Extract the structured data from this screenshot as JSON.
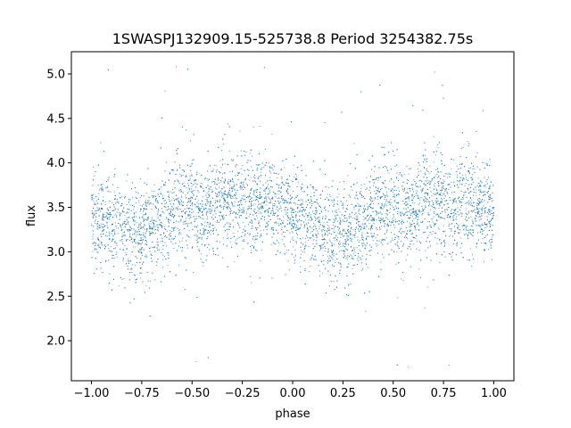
{
  "chart_data": {
    "type": "scatter",
    "title": "1SWASPJ132909.15-525738.8 Period 3254382.75s",
    "xlabel": "phase",
    "ylabel": "flux",
    "xlim": [
      -1.1,
      1.1
    ],
    "ylim": [
      1.55,
      5.25
    ],
    "xticks": [
      -1.0,
      -0.75,
      -0.5,
      -0.25,
      0.0,
      0.25,
      0.5,
      0.75,
      1.0
    ],
    "xtick_labels": [
      "−1.00",
      "−0.75",
      "−0.50",
      "−0.25",
      "0.00",
      "0.25",
      "0.50",
      "0.75",
      "1.00"
    ],
    "yticks": [
      2.0,
      2.5,
      3.0,
      3.5,
      4.0,
      4.5,
      5.0
    ],
    "ytick_labels": [
      "2.0",
      "2.5",
      "3.0",
      "3.5",
      "4.0",
      "4.5",
      "5.0"
    ],
    "grid": false,
    "marker_color": "#1f77b4",
    "series": [
      {
        "x_range": [
          -1.0,
          1.0
        ],
        "y_typical_range": [
          2.8,
          4.0
        ],
        "y_center_by_phase": [
          [
            -1.0,
            3.45
          ],
          [
            -0.9,
            3.3
          ],
          [
            -0.8,
            3.2
          ],
          [
            -0.7,
            3.25
          ],
          [
            -0.6,
            3.45
          ],
          [
            -0.5,
            3.55
          ],
          [
            -0.45,
            3.35
          ],
          [
            -0.35,
            3.6
          ],
          [
            -0.25,
            3.55
          ],
          [
            -0.1,
            3.5
          ],
          [
            0.0,
            3.45
          ],
          [
            0.1,
            3.3
          ],
          [
            0.2,
            3.2
          ],
          [
            0.3,
            3.25
          ],
          [
            0.4,
            3.45
          ],
          [
            0.5,
            3.55
          ],
          [
            0.55,
            3.35
          ],
          [
            0.65,
            3.6
          ],
          [
            0.75,
            3.55
          ],
          [
            0.9,
            3.5
          ],
          [
            1.0,
            3.45
          ]
        ]
      }
    ]
  }
}
